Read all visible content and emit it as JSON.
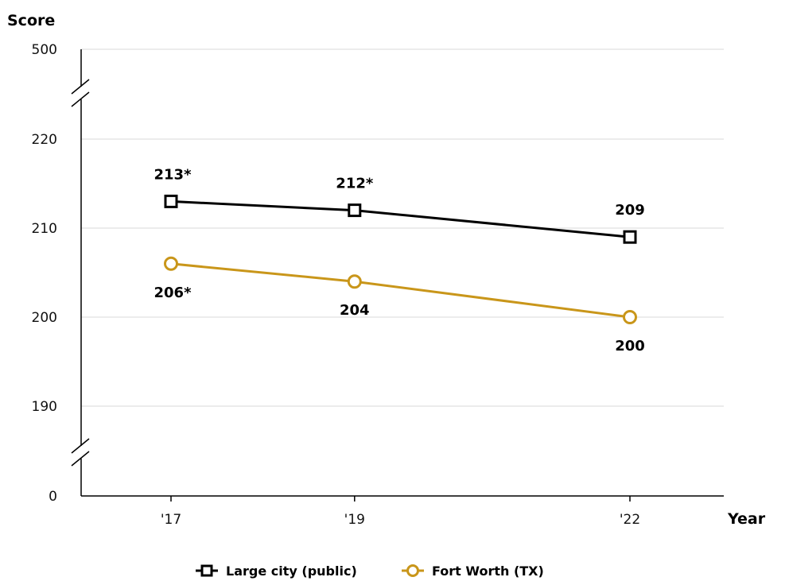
{
  "chart_data": {
    "type": "line",
    "ylabel": "Score",
    "xlabel": "Year",
    "categories": [
      "'17",
      "'19",
      "'22"
    ],
    "x": [
      2017,
      2019,
      2022
    ],
    "xlim": [
      2016,
      2026
    ],
    "y_ticks": [
      {
        "value": 0,
        "label": "0"
      },
      {
        "value": 190,
        "label": "190"
      },
      {
        "value": 200,
        "label": "200"
      },
      {
        "value": 210,
        "label": "210"
      },
      {
        "value": 220,
        "label": "220"
      },
      {
        "value": 500,
        "label": "500"
      }
    ],
    "y_axis_breaks": [
      "between 0 and 190",
      "between 220 and 500"
    ],
    "grid": true,
    "legend_position": "bottom",
    "series": [
      {
        "name": "Large city (public)",
        "marker": "square",
        "color": "#000000",
        "values": [
          213,
          212,
          209
        ],
        "labels": [
          "213*",
          "212*",
          "209"
        ]
      },
      {
        "name": "Fort Worth (TX)",
        "marker": "circle",
        "color": "#C9961A",
        "values": [
          206,
          204,
          200
        ],
        "labels": [
          "206*",
          "204",
          "200"
        ]
      }
    ]
  }
}
